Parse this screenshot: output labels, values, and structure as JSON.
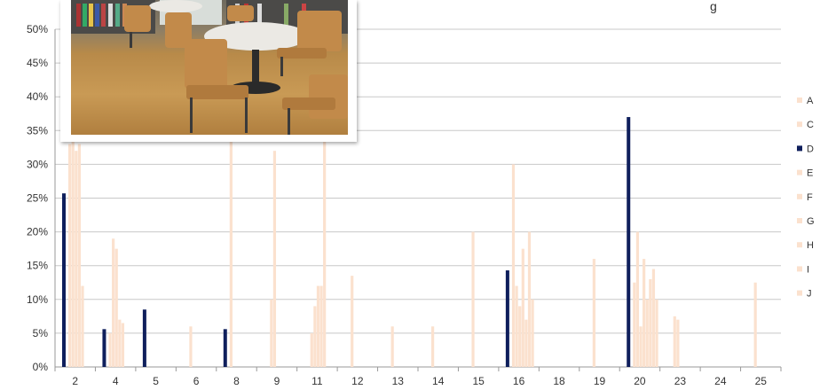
{
  "title_fragment": "g",
  "colors": {
    "highlight": "#0f1f5c",
    "light": "#fbe1ce",
    "grid": "#c8c8c8",
    "axis": "#999999"
  },
  "chart_data": {
    "type": "bar",
    "title": "",
    "xlabel": "",
    "ylabel": "",
    "ylim": [
      0,
      50
    ],
    "yticks": [
      "0%",
      "5%",
      "10%",
      "15%",
      "20%",
      "25%",
      "30%",
      "35%",
      "40%",
      "45%",
      "50%"
    ],
    "x_tick_labels": [
      "2",
      "4",
      "5",
      "6",
      "8",
      "9",
      "11",
      "12",
      "13",
      "14",
      "15",
      "16",
      "18",
      "19",
      "20",
      "23",
      "24",
      "25"
    ],
    "legend": [
      "A",
      "C",
      "D",
      "E",
      "F",
      "G",
      "H",
      "I",
      "J"
    ],
    "legend_placement": "right",
    "grid": true,
    "groups": [
      {
        "label": "2",
        "light": [
          33,
          35,
          32,
          33,
          12
        ],
        "D": 25.7
      },
      {
        "label": "4",
        "light": [
          5,
          19,
          17.5,
          7,
          6.5
        ],
        "D": 5.6
      },
      {
        "label": "5",
        "light": [],
        "D": 8.5
      },
      {
        "label": "6",
        "light": [
          6
        ],
        "D": null
      },
      {
        "label": "8",
        "light": [
          35
        ],
        "D": 5.6
      },
      {
        "label": "9",
        "light": [
          10,
          32
        ],
        "D": null
      },
      {
        "label": "11",
        "light": [
          5,
          9,
          12,
          12,
          35
        ],
        "D": null
      },
      {
        "label": "12",
        "light": [
          13.5
        ],
        "D": null
      },
      {
        "label": "13",
        "light": [
          6
        ],
        "D": null
      },
      {
        "label": "14",
        "light": [
          6
        ],
        "D": null
      },
      {
        "label": "15",
        "light": [
          20
        ],
        "D": null
      },
      {
        "label": "16",
        "light": [
          30,
          12,
          9,
          17.5,
          7,
          20,
          10
        ],
        "D": 14.3
      },
      {
        "label": "18",
        "light": [],
        "D": null
      },
      {
        "label": "19",
        "light": [
          16
        ],
        "D": null
      },
      {
        "label": "20",
        "light": [
          12.5,
          20,
          6,
          16,
          10,
          13,
          14.5,
          10
        ],
        "D": 37
      },
      {
        "label": "23",
        "light": [
          7.5,
          7
        ],
        "D": null
      },
      {
        "label": "24",
        "light": [],
        "D": null
      },
      {
        "label": "25",
        "light": [
          12.5
        ],
        "D": null
      }
    ]
  }
}
